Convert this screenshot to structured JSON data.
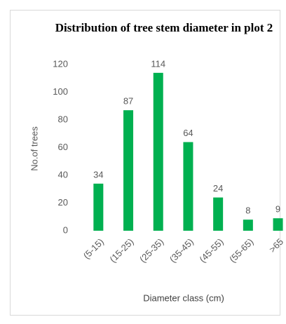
{
  "chart_data": {
    "type": "bar",
    "title": "Distribution of tree stem diameter in plot 2",
    "x_label": "Diameter class (cm)",
    "y_label": "No.of trees",
    "categories": [
      "(5-15)",
      "(15-25)",
      "(25-35)",
      "(35-45)",
      "(45-55)",
      "(55-65)",
      ">65"
    ],
    "values": [
      34,
      87,
      114,
      64,
      24,
      8,
      9
    ],
    "color": "#00b050",
    "ylim": [
      0,
      120
    ],
    "yticks": [
      0,
      20,
      40,
      60,
      80,
      100,
      120
    ],
    "grid": false
  }
}
